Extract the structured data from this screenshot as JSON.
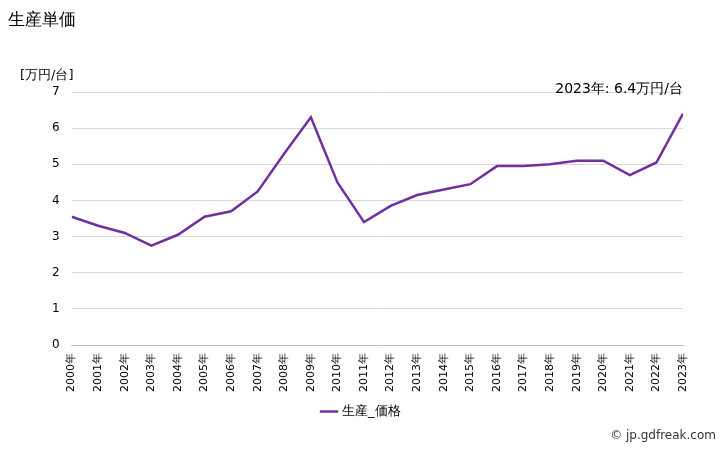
{
  "chart_data": {
    "type": "line",
    "title": "生産単価",
    "ylabel": "[万円/台]",
    "annotations": [
      "2023年: 6.4万円/台"
    ],
    "source": "© jp.gdfreak.com",
    "categories": [
      "2000年",
      "2001年",
      "2002年",
      "2003年",
      "2004年",
      "2005年",
      "2006年",
      "2007年",
      "2008年",
      "2009年",
      "2010年",
      "2011年",
      "2012年",
      "2013年",
      "2014年",
      "2015年",
      "2016年",
      "2017年",
      "2018年",
      "2019年",
      "2020年",
      "2021年",
      "2022年",
      "2023年"
    ],
    "series": [
      {
        "name": "生産_価格",
        "color": "#7030a0",
        "values": [
          3.55,
          3.3,
          3.1,
          2.75,
          3.05,
          3.55,
          3.7,
          4.25,
          5.3,
          6.3,
          4.5,
          3.4,
          3.85,
          4.15,
          4.3,
          4.45,
          4.95,
          4.95,
          5.0,
          5.1,
          5.1,
          4.7,
          5.05,
          6.4
        ]
      }
    ],
    "ylim": [
      0,
      7
    ],
    "yticks": [
      0,
      1,
      2,
      3,
      4,
      5,
      6,
      7
    ],
    "grid": true,
    "legend": "bottom"
  }
}
